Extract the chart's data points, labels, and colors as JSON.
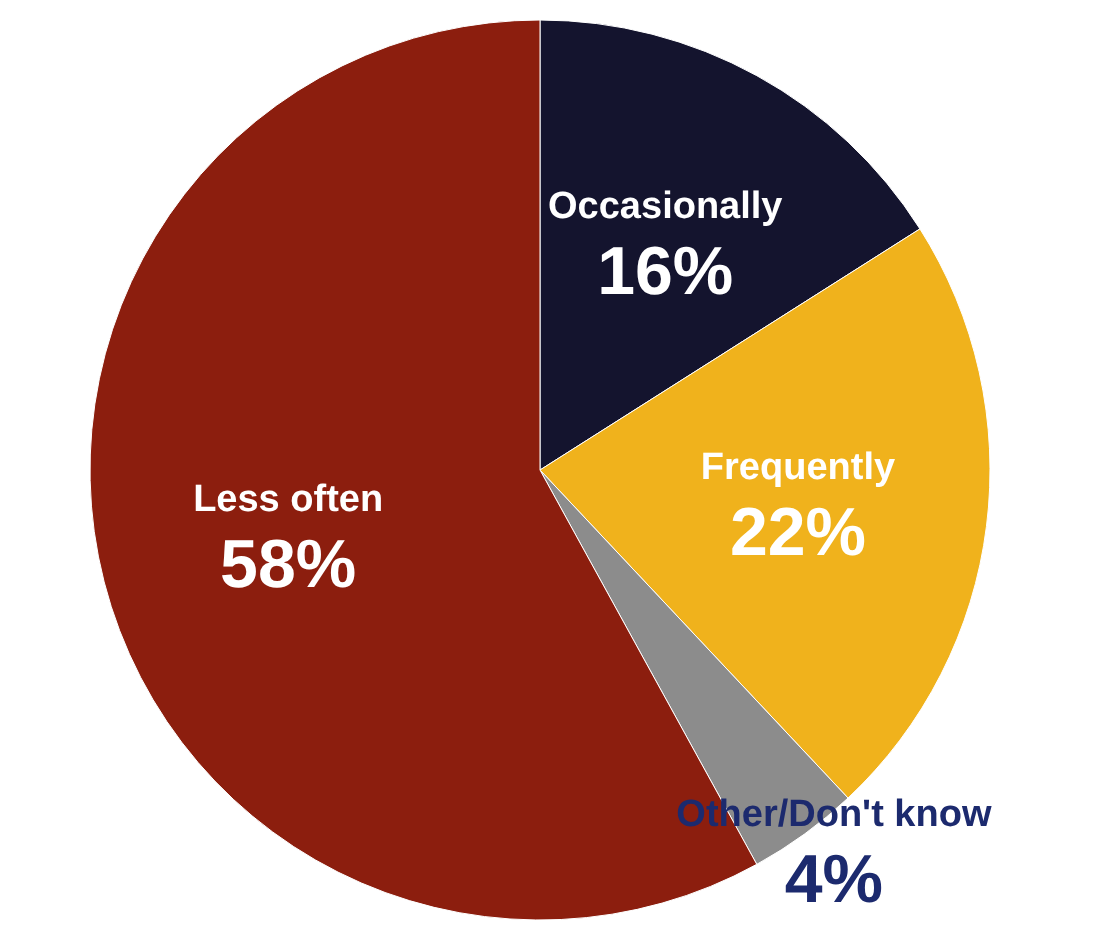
{
  "chart_data": {
    "type": "pie",
    "categories": [
      "Occasionally",
      "Frequently",
      "Other/Don't know",
      "Less often"
    ],
    "values": [
      16,
      22,
      4,
      58
    ],
    "colors": [
      "#14142e",
      "#f0b21c",
      "#8c8c8c",
      "#8c1e0e"
    ],
    "value_labels": [
      "16%",
      "22%",
      "4%",
      "58%"
    ]
  }
}
